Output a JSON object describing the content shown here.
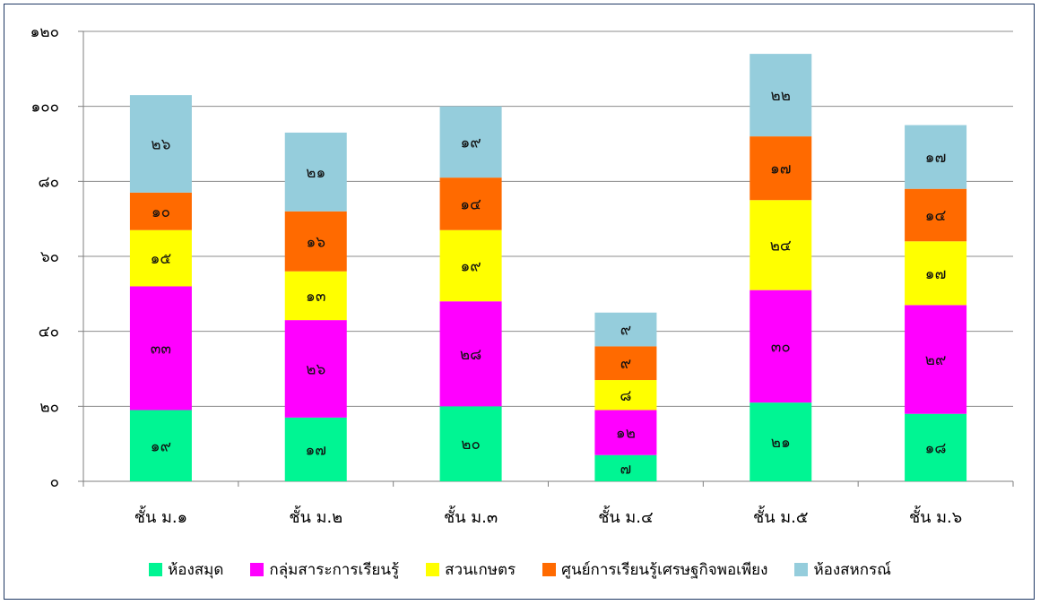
{
  "chart_data": {
    "type": "bar",
    "stacked": true,
    "categories": [
      "ชั้น ม.๑",
      "ชั้น ม.๒",
      "ชั้น ม.๓",
      "ชั้น ม.๔",
      "ชั้น ม.๕",
      "ชั้น ม.๖"
    ],
    "series": [
      {
        "name": "ห้องสมุด",
        "color": "#00f593",
        "values": [
          19,
          17,
          20,
          7,
          21,
          18
        ],
        "labels": [
          "๑๙",
          "๑๗",
          "๒๐",
          "๗",
          "๒๑",
          "๑๘"
        ]
      },
      {
        "name": "กลุ่มสาระการเรียนรู้",
        "color": "#ff00ff",
        "values": [
          33,
          26,
          28,
          12,
          30,
          29
        ],
        "labels": [
          "๓๓",
          "๒๖",
          "๒๘",
          "๑๒",
          "๓๐",
          "๒๙"
        ]
      },
      {
        "name": "สวนเกษตร",
        "color": "#ffff00",
        "values": [
          15,
          13,
          19,
          8,
          24,
          17
        ],
        "labels": [
          "๑๕",
          "๑๓",
          "๑๙",
          "๘",
          "๒๔",
          "๑๗"
        ]
      },
      {
        "name": "ศูนย์การเรียนรู้เศรษฐกิจพอเพียง",
        "color": "#ff6a00",
        "values": [
          10,
          16,
          14,
          9,
          17,
          14
        ],
        "labels": [
          "๑๐",
          "๑๖",
          "๑๔",
          "๙",
          "๑๗",
          "๑๔"
        ]
      },
      {
        "name": "ห้องสหกรณ์",
        "color": "#95cddc",
        "values": [
          26,
          21,
          19,
          9,
          22,
          17
        ],
        "labels": [
          "๒๖",
          "๒๑",
          "๑๙",
          "๙",
          "๒๒",
          "๑๗"
        ]
      }
    ],
    "yticks": [
      0,
      20,
      40,
      60,
      80,
      100,
      120
    ],
    "ytick_labels": [
      "๐",
      "๒๐",
      "๔๐",
      "๖๐",
      "๘๐",
      "๑๐๐",
      "๑๒๐"
    ],
    "ylim": [
      0,
      120
    ],
    "grid": true,
    "legend_position": "bottom"
  }
}
